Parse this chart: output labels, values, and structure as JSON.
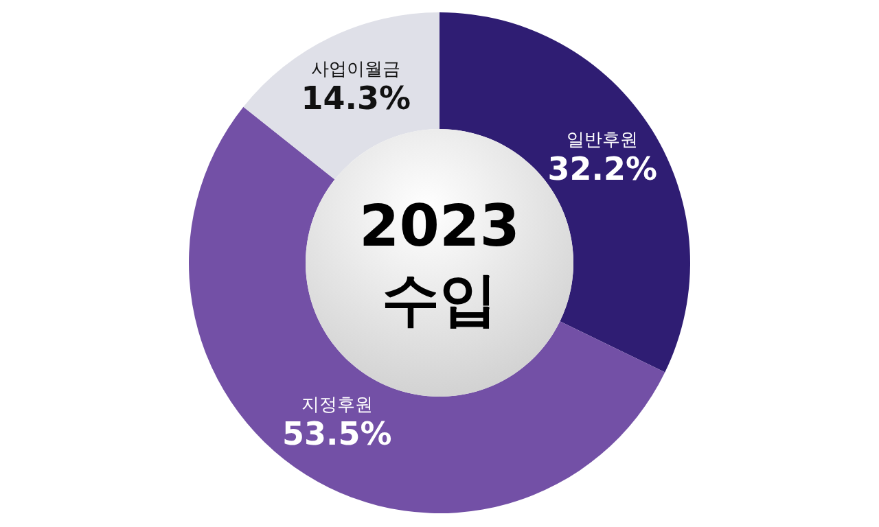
{
  "chart_data": {
    "type": "donut",
    "title": "2023",
    "subtitle": "수입",
    "categories": [
      "일반후원",
      "지정후원",
      "사업이월금"
    ],
    "values": [
      32.2,
      53.5,
      14.3
    ],
    "colors": [
      "#2f1d73",
      "#7350a6",
      "#dfe0e8"
    ],
    "value_labels": [
      "32.2%",
      "53.5%",
      "14.3%"
    ]
  }
}
